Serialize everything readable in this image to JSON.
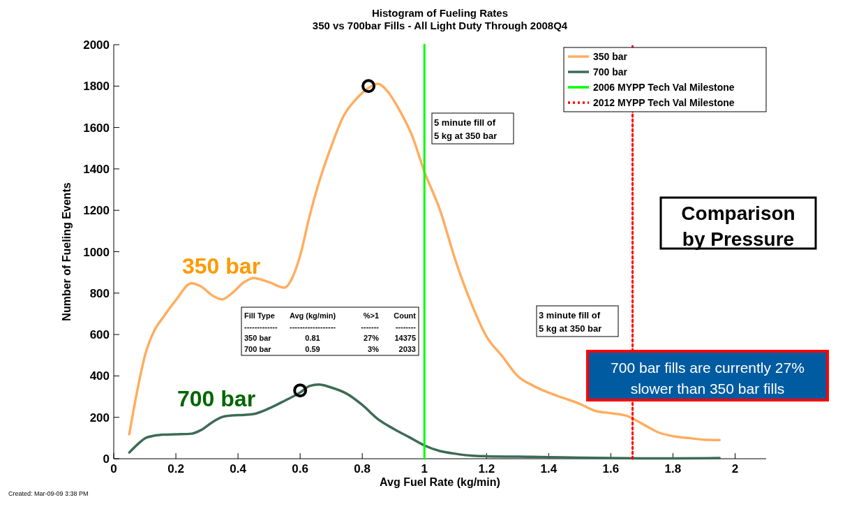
{
  "chart_data": {
    "type": "line",
    "title": "Histogram of Fueling Rates",
    "subtitle": "350 vs 700bar Fills - All Light Duty Through 2008Q4",
    "xlabel": "Avg Fuel Rate (kg/min)",
    "ylabel": "Number of Fueling Events",
    "xlim": [
      0,
      2.1
    ],
    "xticks": [
      0,
      0.2,
      0.4,
      0.6,
      0.8,
      1,
      1.2,
      1.4,
      1.6,
      1.8,
      2
    ],
    "ylim": [
      0,
      2000
    ],
    "yticks": [
      0,
      200,
      400,
      600,
      800,
      1000,
      1200,
      1400,
      1600,
      1800,
      2000
    ],
    "grid": false,
    "legend": "top right",
    "series": [
      {
        "name": "350 bar",
        "color": "#ffad60",
        "x": [
          0.05,
          0.08,
          0.1,
          0.13,
          0.16,
          0.2,
          0.25,
          0.28,
          0.32,
          0.35,
          0.38,
          0.42,
          0.45,
          0.5,
          0.55,
          0.57,
          0.6,
          0.63,
          0.66,
          0.7,
          0.74,
          0.78,
          0.82,
          0.85,
          0.88,
          0.92,
          0.96,
          1.0,
          1.05,
          1.1,
          1.15,
          1.2,
          1.25,
          1.3,
          1.35,
          1.4,
          1.45,
          1.5,
          1.55,
          1.6,
          1.65,
          1.7,
          1.75,
          1.8,
          1.85,
          1.9,
          1.95
        ],
        "values": [
          118,
          361,
          496,
          617,
          685,
          766,
          847,
          833,
          786,
          770,
          799,
          853,
          873,
          853,
          826,
          860,
          981,
          1170,
          1332,
          1508,
          1656,
          1737,
          1791,
          1811,
          1777,
          1683,
          1562,
          1386,
          1202,
          958,
          754,
          590,
          496,
          400,
          353,
          319,
          292,
          265,
          231,
          220,
          208,
          170,
          129,
          109,
          100,
          92,
          90
        ]
      },
      {
        "name": "700 bar",
        "color": "#3d6b55",
        "x": [
          0.05,
          0.08,
          0.1,
          0.13,
          0.16,
          0.2,
          0.25,
          0.28,
          0.32,
          0.35,
          0.38,
          0.42,
          0.45,
          0.5,
          0.55,
          0.6,
          0.63,
          0.66,
          0.7,
          0.75,
          0.8,
          0.85,
          0.9,
          0.95,
          1.0,
          1.05,
          1.1,
          1.15,
          1.2,
          1.3,
          1.4,
          1.5,
          1.6,
          1.7,
          1.8,
          1.95
        ],
        "values": [
          30,
          74,
          98,
          111,
          116,
          118,
          121,
          138,
          179,
          202,
          209,
          212,
          216,
          243,
          280,
          320,
          351,
          358,
          344,
          314,
          260,
          192,
          145,
          105,
          64,
          37,
          24,
          15,
          12,
          10,
          8,
          5,
          3,
          2,
          2,
          3
        ]
      },
      {
        "type": "scatter",
        "marker": "circle",
        "color": "#000000",
        "x": [
          0.6,
          0.82
        ],
        "values": [
          330,
          1800
        ]
      },
      {
        "name": "2006 MYPP Tech Val Milestone",
        "color": "#00ff00",
        "line_style": "solid",
        "x": [
          1.0,
          1.0
        ],
        "values": [
          0,
          2000
        ]
      },
      {
        "name": "2012 MYPP Tech Val Milestone",
        "color": "#ff0000",
        "line_style": "dotted",
        "x": [
          1.67,
          1.67
        ],
        "values": [
          0,
          2000
        ]
      }
    ],
    "annotations": [
      "350 bar",
      "700 bar",
      "5 minute fill of\n5 kg at 350 bar",
      "3 minute fill of\n5 kg at 350 bar",
      "Comparison\nby Pressure",
      "700 bar fills are currently 27%\nslower than 350 bar fills",
      "Fill Type\tAvg (kg/min)\t%>1\tCount\n-------------\t------------------\t-------\t--------\n350 bar\t0.81\t27%\t14375\n700 bar\t0.59\t3%\t2033",
      "Created: Mar-09-09  3:38 PM"
    ]
  }
}
